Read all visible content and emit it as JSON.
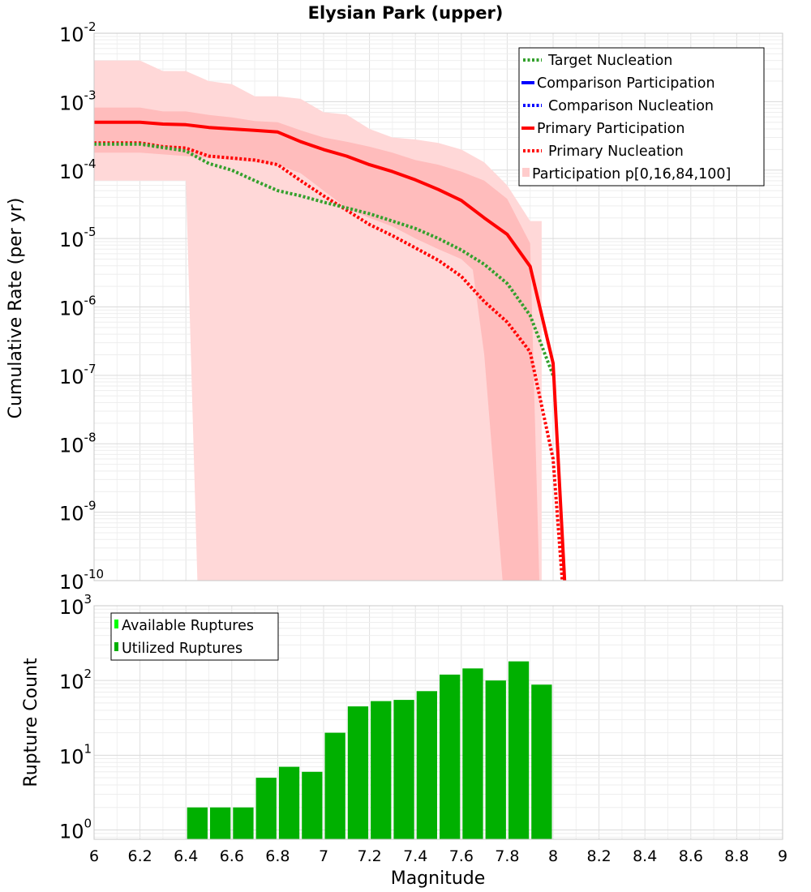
{
  "chart_data": [
    {
      "type": "line",
      "title": "Elysian Park (upper)",
      "xlabel": "Magnitude",
      "ylabel": "Cumulative Rate (per yr)",
      "yscale": "log",
      "xlim": [
        6,
        9
      ],
      "ylim": [
        1e-10,
        0.01
      ],
      "grid": true,
      "legend_position": "top-right",
      "ytick_labels": [
        {
          "base": "10",
          "exp": "-2",
          "value": 0.01
        },
        {
          "base": "10",
          "exp": "-3",
          "value": 0.001
        },
        {
          "base": "10",
          "exp": "-4",
          "value": 0.0001
        },
        {
          "base": "10",
          "exp": "-5",
          "value": 1e-05
        },
        {
          "base": "10",
          "exp": "-6",
          "value": 1e-06
        },
        {
          "base": "10",
          "exp": "-7",
          "value": 1e-07
        },
        {
          "base": "10",
          "exp": "-8",
          "value": 1e-08
        },
        {
          "base": "10",
          "exp": "-9",
          "value": 1e-09
        },
        {
          "base": "10",
          "exp": "-10",
          "value": 1e-10
        }
      ],
      "series": [
        {
          "name": "Target Nucleation",
          "color": "#33a02c",
          "style": "dotted",
          "x": [
            6.0,
            6.2,
            6.4,
            6.5,
            6.6,
            6.7,
            6.8,
            6.9,
            7.0,
            7.1,
            7.2,
            7.3,
            7.4,
            7.5,
            7.6,
            7.7,
            7.8,
            7.9,
            8.0
          ],
          "y": [
            0.00024,
            0.00024,
            0.00019,
            0.000125,
            0.0001,
            7e-05,
            5e-05,
            4.2e-05,
            3.4e-05,
            2.8e-05,
            2.3e-05,
            1.8e-05,
            1.4e-05,
            1e-05,
            6.8e-06,
            4.2e-06,
            2.2e-06,
            7.5e-07,
            1e-07
          ]
        },
        {
          "name": "Comparison Participation",
          "color": "#0000ff",
          "style": "solid",
          "x": [],
          "y": []
        },
        {
          "name": "Comparison Nucleation",
          "color": "#0000ff",
          "style": "dotted",
          "x": [],
          "y": []
        },
        {
          "name": "Primary Participation",
          "color": "#ff0000",
          "style": "solid",
          "x": [
            6.0,
            6.2,
            6.3,
            6.4,
            6.5,
            6.6,
            6.7,
            6.8,
            6.9,
            7.0,
            7.1,
            7.2,
            7.3,
            7.4,
            7.5,
            7.6,
            7.7,
            7.8,
            7.9,
            8.0,
            8.05
          ],
          "y": [
            0.0005,
            0.0005,
            0.00047,
            0.00046,
            0.00042,
            0.0004,
            0.00038,
            0.00036,
            0.00026,
            0.0002,
            0.00016,
            0.00012,
            9.5e-05,
            7.2e-05,
            5.2e-05,
            3.6e-05,
            2e-05,
            1.15e-05,
            3.9e-06,
            1.5e-07,
            1e-10
          ]
        },
        {
          "name": "Primary Nucleation",
          "color": "#ff0000",
          "style": "dotted",
          "x": [
            6.0,
            6.2,
            6.3,
            6.4,
            6.5,
            6.6,
            6.7,
            6.8,
            6.9,
            7.0,
            7.1,
            7.2,
            7.3,
            7.4,
            7.5,
            7.6,
            7.7,
            7.8,
            7.9,
            8.0,
            8.04
          ],
          "y": [
            0.00025,
            0.00025,
            0.00022,
            0.00021,
            0.00016,
            0.00015,
            0.00014,
            0.00012,
            7e-05,
            4.2e-05,
            2.6e-05,
            1.6e-05,
            1.1e-05,
            7.3e-06,
            4.8e-06,
            2.8e-06,
            1.2e-06,
            6e-07,
            2.2e-07,
            6e-09,
            1e-10
          ]
        },
        {
          "name": "Participation p[0,16,84,100]",
          "color": "#ffcccc",
          "style": "band"
        }
      ],
      "bands": {
        "outer": {
          "color": "#ffd8d8",
          "upper": {
            "x": [
              6.0,
              6.2,
              6.3,
              6.4,
              6.5,
              6.6,
              6.7,
              6.8,
              6.9,
              7.0,
              7.1,
              7.2,
              7.3,
              7.4,
              7.5,
              7.6,
              7.7,
              7.8,
              7.9,
              7.95
            ],
            "y": [
              0.004,
              0.004,
              0.0028,
              0.0028,
              0.002,
              0.0018,
              0.0012,
              0.0012,
              0.0011,
              0.0007,
              0.00065,
              0.0004,
              0.0003,
              0.00028,
              0.00025,
              0.0002,
              0.00013,
              6e-05,
              1.8e-05,
              1.8e-05
            ]
          },
          "lower": {
            "x": [
              6.0,
              6.4,
              6.45,
              7.7,
              7.78,
              7.94,
              7.95
            ],
            "y": [
              7e-05,
              7e-05,
              1e-10,
              1e-10,
              1e-10,
              1e-10,
              1e-10
            ]
          }
        },
        "inner": {
          "color": "#ffbcbc",
          "upper": {
            "x": [
              6.0,
              6.2,
              6.3,
              6.4,
              6.5,
              6.6,
              6.7,
              6.8,
              6.9,
              7.0,
              7.1,
              7.2,
              7.3,
              7.4,
              7.5,
              7.6,
              7.7,
              7.8,
              7.9,
              7.94
            ],
            "y": [
              0.00082,
              0.00082,
              0.00072,
              0.00072,
              0.00064,
              0.00059,
              0.00052,
              0.0005,
              0.00038,
              0.0003,
              0.00026,
              0.00022,
              0.00018,
              0.00014,
              0.00012,
              9.5e-05,
              7e-05,
              3.8e-05,
              8.5e-06,
              1e-10
            ]
          },
          "lower": {
            "x": [
              6.0,
              6.2,
              6.4,
              6.5,
              6.6,
              6.7,
              6.8,
              6.9,
              7.0,
              7.1,
              7.2,
              7.3,
              7.4,
              7.5,
              7.6,
              7.65,
              7.7,
              7.78
            ],
            "y": [
              0.00018,
              0.00018,
              0.00016,
              0.00015,
              0.00014,
              0.00013,
              0.00012,
              9e-05,
              5e-05,
              2.8e-05,
              2e-05,
              1.5e-05,
              1e-05,
              7e-06,
              5e-06,
              3.5e-06,
              2e-07,
              1e-10
            ]
          }
        }
      }
    },
    {
      "type": "bar",
      "xlabel": "Magnitude",
      "ylabel": "Rupture Count",
      "yscale": "log",
      "xlim": [
        6,
        9
      ],
      "ylim": [
        0.75,
        1000
      ],
      "grid": true,
      "legend_position": "top-left",
      "ytick_labels": [
        {
          "base": "10",
          "exp": "3",
          "value": 1000
        },
        {
          "base": "10",
          "exp": "2",
          "value": 100
        },
        {
          "base": "10",
          "exp": "1",
          "value": 10
        },
        {
          "base": "10",
          "exp": "0",
          "value": 1
        }
      ],
      "xtick_labels": [
        "6",
        "6.2",
        "6.4",
        "6.6",
        "6.8",
        "7",
        "7.2",
        "7.4",
        "7.6",
        "7.8",
        "8",
        "8.2",
        "8.4",
        "8.6",
        "8.8",
        "9"
      ],
      "bin_width": 0.1,
      "series": [
        {
          "name": "Available Ruptures",
          "color": "#00ff00",
          "x": [],
          "values": []
        },
        {
          "name": "Utilized Ruptures",
          "color": "#00b000",
          "x": [
            6.45,
            6.55,
            6.65,
            6.75,
            6.85,
            6.95,
            7.05,
            7.15,
            7.25,
            7.35,
            7.45,
            7.55,
            7.65,
            7.75,
            7.85,
            7.95
          ],
          "values": [
            2,
            2,
            2,
            5,
            7,
            6,
            20,
            45,
            53,
            55,
            72,
            120,
            145,
            100,
            180,
            88
          ]
        }
      ]
    }
  ]
}
